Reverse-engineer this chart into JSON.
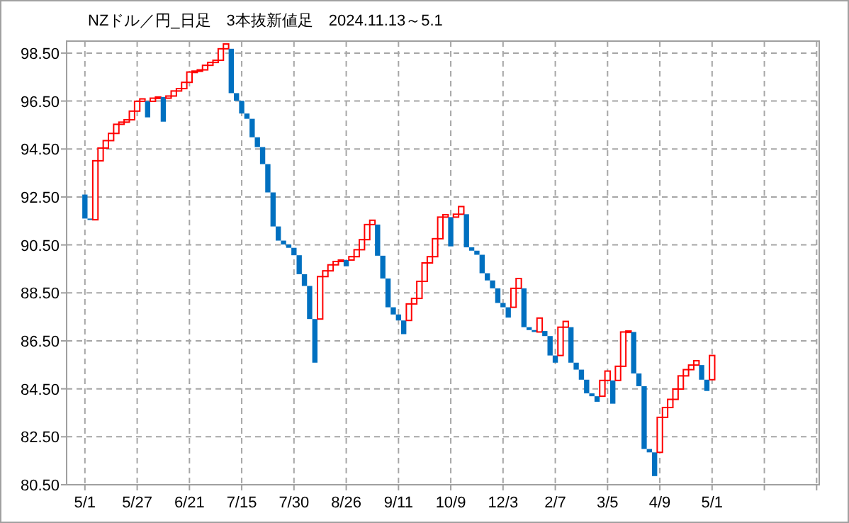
{
  "chart_data": {
    "type": "candlestick",
    "title": "NZドル／円_日足　3本抜新値足　2024.11.13～5.1",
    "categories": [
      null,
      null,
      null,
      "5/1",
      null,
      null,
      null,
      null,
      null,
      null,
      null,
      null,
      null,
      "5/27",
      null,
      null,
      null,
      null,
      null,
      null,
      null,
      null,
      null,
      "6/21",
      null,
      null,
      null,
      null,
      null,
      null,
      null,
      null,
      null,
      "7/15",
      null,
      null,
      null,
      null,
      null,
      null,
      null,
      null,
      null,
      "7/30",
      null,
      null,
      null,
      null,
      null,
      null,
      null,
      null,
      null,
      "8/26",
      null,
      null,
      null,
      null,
      null,
      null,
      null,
      null,
      null,
      "9/11",
      null,
      null,
      null,
      null,
      null,
      null,
      null,
      null,
      null,
      "10/9",
      null,
      null,
      null,
      null,
      null,
      null,
      null,
      null,
      null,
      "12/3",
      null,
      null,
      null,
      null,
      null,
      null,
      null,
      null,
      null,
      "2/7",
      null,
      null,
      null,
      null,
      null,
      null,
      null,
      null,
      null,
      "3/5",
      null,
      null,
      null,
      null,
      null,
      null,
      null,
      null,
      null,
      "4/9",
      null,
      null,
      null,
      null,
      null,
      null,
      null,
      null,
      null,
      "5/1",
      null,
      null,
      null,
      null,
      null,
      null,
      null,
      null,
      null,
      null,
      null,
      null,
      null,
      null,
      null,
      null,
      null,
      null,
      null,
      null
    ],
    "ohlc": [
      null,
      null,
      null,
      [
        92.6,
        92.6,
        91.6,
        91.6
      ],
      [
        91.6,
        91.6,
        91.55,
        91.55
      ],
      [
        91.55,
        94.01,
        91.55,
        94.01
      ],
      [
        94.01,
        94.54,
        94.01,
        94.54
      ],
      [
        94.54,
        94.85,
        94.54,
        94.85
      ],
      [
        94.85,
        95.15,
        94.85,
        95.15
      ],
      [
        95.15,
        95.53,
        95.15,
        95.53
      ],
      [
        95.53,
        95.62,
        95.53,
        95.62
      ],
      [
        95.62,
        95.72,
        95.62,
        95.72
      ],
      [
        95.72,
        96.08,
        95.72,
        96.08
      ],
      [
        96.08,
        96.49,
        96.08,
        96.49
      ],
      [
        96.49,
        96.59,
        96.49,
        96.59
      ],
      [
        96.49,
        96.49,
        95.82,
        95.82
      ],
      [
        96.49,
        96.62,
        96.49,
        96.62
      ],
      [
        96.62,
        96.67,
        96.62,
        96.67
      ],
      [
        96.67,
        96.67,
        95.64,
        95.64
      ],
      [
        96.62,
        96.71,
        96.62,
        96.71
      ],
      [
        96.71,
        96.92,
        96.71,
        96.92
      ],
      [
        96.92,
        97.02,
        96.92,
        97.02
      ],
      [
        97.02,
        97.28,
        97.02,
        97.28
      ],
      [
        97.28,
        97.71,
        97.28,
        97.71
      ],
      [
        97.71,
        97.75,
        97.71,
        97.75
      ],
      [
        97.75,
        97.8,
        97.75,
        97.8
      ],
      [
        97.8,
        97.99,
        97.8,
        97.99
      ],
      [
        97.99,
        98.11,
        97.99,
        98.11
      ],
      [
        98.11,
        98.2,
        98.11,
        98.2
      ],
      [
        98.2,
        98.68,
        98.2,
        98.68
      ],
      [
        98.68,
        98.88,
        98.68,
        98.88
      ],
      [
        98.68,
        98.68,
        96.83,
        96.83
      ],
      [
        96.83,
        96.83,
        96.51,
        96.51
      ],
      [
        96.51,
        96.51,
        95.98,
        95.98
      ],
      [
        95.98,
        95.98,
        95.76,
        95.76
      ],
      [
        95.76,
        95.76,
        94.99,
        94.99
      ],
      [
        94.99,
        94.99,
        94.58,
        94.58
      ],
      [
        94.58,
        94.58,
        93.87,
        93.87
      ],
      [
        93.87,
        93.87,
        92.69,
        92.69
      ],
      [
        92.69,
        92.69,
        91.27,
        91.27
      ],
      [
        91.27,
        91.27,
        90.68,
        90.68
      ],
      [
        90.68,
        90.68,
        90.52,
        90.52
      ],
      [
        90.52,
        90.52,
        90.38,
        90.38
      ],
      [
        90.38,
        90.38,
        90.07,
        90.07
      ],
      [
        90.07,
        90.07,
        89.28,
        89.28
      ],
      [
        89.28,
        89.28,
        88.79,
        88.79
      ],
      [
        88.79,
        88.79,
        87.41,
        87.41
      ],
      [
        87.41,
        87.41,
        85.59,
        85.59
      ],
      [
        87.41,
        89.18,
        87.41,
        89.18
      ],
      [
        89.18,
        89.42,
        89.18,
        89.42
      ],
      [
        89.42,
        89.67,
        89.42,
        89.67
      ],
      [
        89.67,
        89.81,
        89.67,
        89.81
      ],
      [
        89.81,
        89.87,
        89.81,
        89.87
      ],
      [
        89.87,
        89.87,
        89.61,
        89.61
      ],
      [
        89.87,
        90.01,
        89.87,
        90.01
      ],
      [
        90.01,
        90.3,
        90.01,
        90.3
      ],
      [
        90.3,
        90.72,
        90.3,
        90.72
      ],
      [
        90.72,
        91.35,
        90.72,
        91.35
      ],
      [
        91.35,
        91.53,
        91.35,
        91.53
      ],
      [
        91.35,
        91.35,
        90.05,
        90.05
      ],
      [
        90.05,
        90.05,
        89.1,
        89.1
      ],
      [
        89.1,
        89.1,
        87.9,
        87.9
      ],
      [
        87.9,
        87.9,
        87.6,
        87.6
      ],
      [
        87.6,
        87.6,
        87.35,
        87.35
      ],
      [
        87.35,
        87.35,
        86.78,
        86.78
      ],
      [
        87.35,
        88.04,
        87.35,
        88.04
      ],
      [
        88.04,
        88.27,
        88.04,
        88.27
      ],
      [
        88.27,
        88.98,
        88.27,
        88.98
      ],
      [
        88.98,
        89.75,
        88.98,
        89.75
      ],
      [
        89.75,
        90.01,
        89.75,
        90.01
      ],
      [
        90.01,
        90.76,
        90.01,
        90.76
      ],
      [
        90.76,
        91.66,
        90.76,
        91.66
      ],
      [
        91.66,
        91.76,
        91.66,
        91.76
      ],
      [
        91.66,
        91.66,
        90.44,
        90.44
      ],
      [
        91.66,
        91.78,
        91.66,
        91.78
      ],
      [
        91.78,
        92.1,
        91.78,
        92.1
      ],
      [
        91.78,
        91.78,
        90.4,
        90.4
      ],
      [
        90.4,
        90.4,
        90.26,
        90.26
      ],
      [
        90.26,
        90.26,
        90.09,
        90.09
      ],
      [
        90.09,
        90.09,
        89.32,
        89.32
      ],
      [
        89.32,
        89.32,
        89.02,
        89.02
      ],
      [
        89.02,
        89.02,
        88.69,
        88.69
      ],
      [
        88.69,
        88.69,
        88.08,
        88.08
      ],
      [
        88.08,
        88.08,
        87.9,
        87.9
      ],
      [
        87.9,
        87.9,
        87.47,
        87.47
      ],
      [
        87.9,
        88.69,
        87.9,
        88.69
      ],
      [
        88.69,
        89.1,
        88.69,
        89.1
      ],
      [
        88.69,
        88.69,
        87.07,
        87.07
      ],
      [
        87.07,
        87.07,
        86.95,
        86.95
      ],
      [
        86.95,
        86.95,
        86.87,
        86.87
      ],
      [
        86.87,
        87.45,
        86.87,
        87.45
      ],
      [
        86.91,
        86.91,
        86.7,
        86.7
      ],
      [
        86.7,
        86.7,
        85.89,
        85.89
      ],
      [
        85.89,
        85.89,
        85.59,
        85.59
      ],
      [
        85.89,
        87.07,
        85.89,
        87.07
      ],
      [
        87.07,
        87.31,
        87.07,
        87.31
      ],
      [
        87.07,
        87.07,
        85.59,
        85.59
      ],
      [
        85.59,
        85.59,
        85.3,
        85.3
      ],
      [
        85.3,
        85.3,
        84.88,
        84.88
      ],
      [
        84.88,
        84.88,
        84.31,
        84.31
      ],
      [
        84.31,
        84.31,
        84.19,
        84.19
      ],
      [
        84.19,
        84.19,
        83.96,
        83.96
      ],
      [
        84.19,
        84.85,
        84.19,
        84.85
      ],
      [
        84.85,
        85.24,
        84.85,
        85.24
      ],
      [
        84.85,
        84.85,
        83.88,
        83.88
      ],
      [
        84.85,
        85.44,
        84.85,
        85.44
      ],
      [
        85.44,
        86.87,
        85.44,
        86.87
      ],
      [
        86.87,
        86.91,
        86.87,
        86.91
      ],
      [
        86.87,
        86.87,
        85.14,
        85.14
      ],
      [
        85.14,
        85.14,
        84.61,
        84.61
      ],
      [
        84.61,
        84.61,
        81.99,
        81.99
      ],
      [
        81.99,
        81.99,
        81.85,
        81.85
      ],
      [
        81.85,
        81.85,
        80.86,
        80.86
      ],
      [
        81.85,
        83.31,
        81.85,
        83.31
      ],
      [
        83.31,
        83.72,
        83.31,
        83.72
      ],
      [
        83.72,
        84.06,
        83.72,
        84.06
      ],
      [
        84.06,
        84.49,
        84.06,
        84.49
      ],
      [
        84.49,
        85.04,
        84.49,
        85.04
      ],
      [
        85.04,
        85.3,
        85.04,
        85.3
      ],
      [
        85.3,
        85.49,
        85.3,
        85.49
      ],
      [
        85.49,
        85.67,
        85.49,
        85.67
      ],
      [
        85.49,
        85.49,
        84.88,
        84.88
      ],
      [
        84.88,
        84.88,
        84.41,
        84.41
      ],
      [
        84.88,
        85.89,
        84.88,
        85.89
      ],
      null,
      null,
      null,
      null,
      null,
      null,
      null,
      null,
      null,
      null,
      null,
      null,
      null,
      null,
      null,
      null,
      null,
      null,
      null,
      null
    ],
    "colors": [
      null,
      null,
      null,
      "#0070c0",
      "#0070c0",
      "#ff0000",
      "#ff0000",
      "#ff0000",
      "#ff0000",
      "#ff0000",
      "#ff0000",
      "#ff0000",
      "#ff0000",
      "#ff0000",
      "#ff0000",
      "#0070c0",
      "#ff0000",
      "#ff0000",
      "#0070c0",
      "#ff0000",
      "#ff0000",
      "#ff0000",
      "#ff0000",
      "#ff0000",
      "#ff0000",
      "#ff0000",
      "#ff0000",
      "#ff0000",
      "#ff0000",
      "#ff0000",
      "#ff0000",
      "#0070c0",
      "#0070c0",
      "#0070c0",
      "#0070c0",
      "#0070c0",
      "#0070c0",
      "#0070c0",
      "#0070c0",
      "#0070c0",
      "#0070c0",
      "#0070c0",
      "#0070c0",
      "#0070c0",
      "#0070c0",
      "#0070c0",
      "#0070c0",
      "#0070c0",
      "#ff0000",
      "#ff0000",
      "#ff0000",
      "#ff0000",
      "#ff0000",
      "#0070c0",
      "#ff0000",
      "#ff0000",
      "#ff0000",
      "#ff0000",
      "#ff0000",
      "#0070c0",
      "#0070c0",
      "#0070c0",
      "#0070c0",
      "#0070c0",
      "#0070c0",
      "#ff0000",
      "#ff0000",
      "#ff0000",
      "#ff0000",
      "#ff0000",
      "#ff0000",
      "#ff0000",
      "#ff0000",
      "#0070c0",
      "#ff0000",
      "#ff0000",
      "#0070c0",
      "#0070c0",
      "#0070c0",
      "#0070c0",
      "#0070c0",
      "#0070c0",
      "#0070c0",
      "#0070c0",
      "#0070c0",
      "#ff0000",
      "#ff0000",
      "#0070c0",
      "#0070c0",
      "#0070c0",
      "#ff0000",
      "#0070c0",
      "#0070c0",
      "#0070c0",
      "#ff0000",
      "#ff0000",
      "#0070c0",
      "#0070c0",
      "#0070c0",
      "#0070c0",
      "#0070c0",
      "#0070c0",
      "#ff0000",
      "#ff0000",
      "#0070c0",
      "#ff0000",
      "#ff0000",
      "#ff0000",
      "#0070c0",
      "#0070c0",
      "#0070c0",
      "#0070c0",
      "#0070c0",
      "#ff0000",
      "#ff0000",
      "#ff0000",
      "#ff0000",
      "#ff0000",
      "#ff0000",
      "#ff0000",
      "#ff0000",
      "#0070c0",
      "#0070c0",
      "#ff0000",
      null,
      null,
      null,
      null,
      null,
      null,
      null,
      null,
      null,
      null,
      null,
      null,
      null,
      null,
      null,
      null,
      null,
      null,
      null,
      null
    ],
    "ylim": [
      80.5,
      99.0
    ],
    "yticks": [
      {
        "value": 80.5,
        "label": "80.50"
      },
      {
        "value": 82.5,
        "label": "82.50"
      },
      {
        "value": 84.5,
        "label": "84.50"
      },
      {
        "value": 86.5,
        "label": "86.50"
      },
      {
        "value": 88.5,
        "label": "88.50"
      },
      {
        "value": 90.5,
        "label": "90.50"
      },
      {
        "value": 92.5,
        "label": "92.50"
      },
      {
        "value": 94.5,
        "label": "94.50"
      },
      {
        "value": 96.5,
        "label": "96.50"
      },
      {
        "value": 98.5,
        "label": "98.50"
      }
    ],
    "grid": true
  }
}
